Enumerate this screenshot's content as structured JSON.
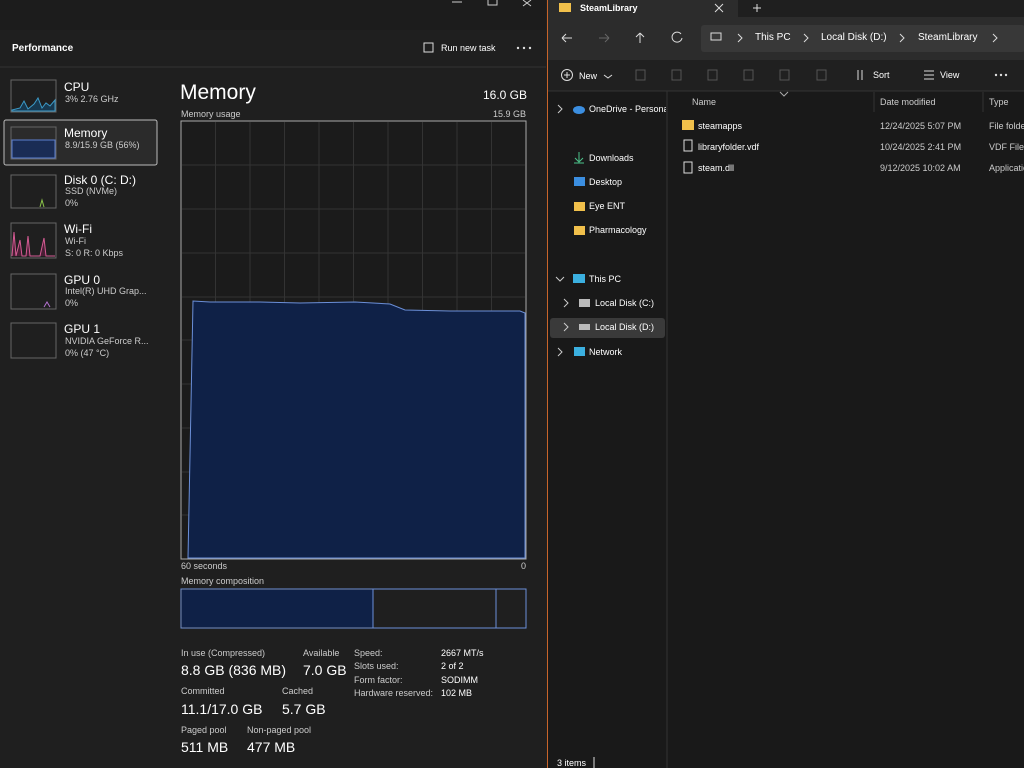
{
  "task_manager": {
    "header": {
      "title": "Performance",
      "run_task": "Run new task"
    },
    "sidebar": [
      {
        "name": "CPU",
        "line1": "3%  2.76 GHz"
      },
      {
        "name": "Memory",
        "line1": "8.9/15.9 GB (56%)"
      },
      {
        "name": "Disk 0 (C: D:)",
        "line1": "SSD (NVMe)",
        "line2": "0%"
      },
      {
        "name": "Wi-Fi",
        "line1": "Wi-Fi",
        "line2": "S: 0  R: 0 Kbps"
      },
      {
        "name": "GPU 0",
        "line1": "Intel(R) UHD Grap...",
        "line2": "0%"
      },
      {
        "name": "GPU 1",
        "line1": "NVIDIA GeForce R...",
        "line2": "0% (47 °C)"
      }
    ],
    "main": {
      "title": "Memory",
      "total": "16.0 GB",
      "usage_label": "Memory usage",
      "usage_max": "15.9 GB",
      "x_start": "60 seconds",
      "x_end": "0",
      "composition_label": "Memory composition",
      "stats": [
        {
          "label": "In use (Compressed)",
          "value": "8.8 GB (836 MB)"
        },
        {
          "label": "Available",
          "value": "7.0 GB"
        },
        {
          "label": "Committed",
          "value": "11.1/17.0 GB"
        },
        {
          "label": "Cached",
          "value": "5.7 GB"
        },
        {
          "label": "Paged pool",
          "value": "511 MB"
        },
        {
          "label": "Non-paged pool",
          "value": "477 MB"
        }
      ],
      "details": [
        {
          "label": "Speed:",
          "value": "2667 MT/s"
        },
        {
          "label": "Slots used:",
          "value": "2 of 2"
        },
        {
          "label": "Form factor:",
          "value": "SODIMM"
        },
        {
          "label": "Hardware reserved:",
          "value": "102 MB"
        }
      ]
    }
  },
  "explorer": {
    "tab": "SteamLibrary",
    "breadcrumb": [
      "This PC",
      "Local Disk (D:)",
      "SteamLibrary"
    ],
    "toolbar": {
      "new": "New",
      "sort": "Sort",
      "view": "View"
    },
    "nav": [
      "OneDrive - Persona",
      "Downloads",
      "Desktop",
      "Eye ENT",
      "Pharmacology",
      "This PC",
      "Local Disk (C:)",
      "Local Disk (D:)",
      "Network"
    ],
    "columns": [
      "Name",
      "Date modified",
      "Type"
    ],
    "files": [
      [
        "steamapps",
        "12/24/2025 5:07 PM",
        "File folde"
      ],
      [
        "libraryfolder.vdf",
        "10/24/2025 2:41 PM",
        "VDF File"
      ],
      [
        "steam.dll",
        "9/12/2025 10:02 AM",
        "Applicatio"
      ]
    ],
    "status": "3 items"
  }
}
